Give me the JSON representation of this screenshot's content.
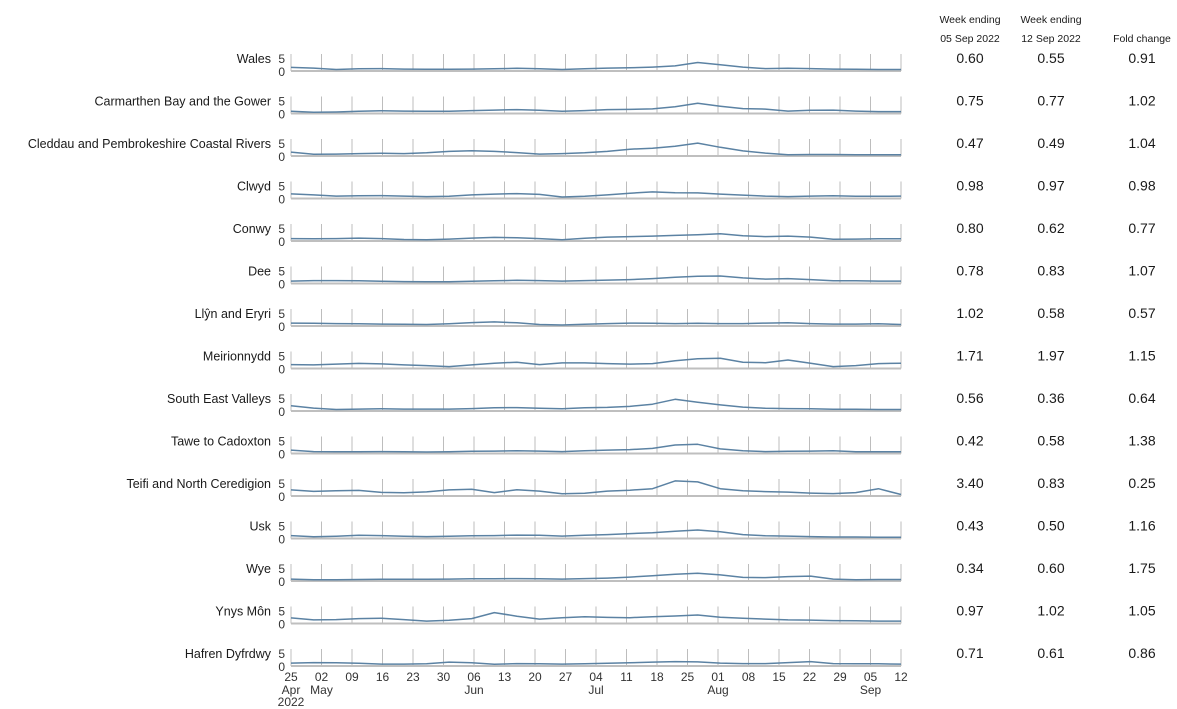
{
  "chart_data": {
    "type": "line",
    "ytick_labels": [
      "5",
      "0"
    ],
    "ylim": [
      0,
      7
    ],
    "x_ticks": [
      {
        "date": "2022-04-25",
        "day": "25",
        "month": "Apr",
        "year": "2022"
      },
      {
        "date": "2022-05-02",
        "day": "02",
        "month": "May",
        "year": ""
      },
      {
        "date": "2022-05-09",
        "day": "09",
        "month": "",
        "year": ""
      },
      {
        "date": "2022-05-16",
        "day": "16",
        "month": "",
        "year": ""
      },
      {
        "date": "2022-05-23",
        "day": "23",
        "month": "",
        "year": ""
      },
      {
        "date": "2022-05-30",
        "day": "30",
        "month": "",
        "year": ""
      },
      {
        "date": "2022-06-06",
        "day": "06",
        "month": "Jun",
        "year": ""
      },
      {
        "date": "2022-06-13",
        "day": "13",
        "month": "",
        "year": ""
      },
      {
        "date": "2022-06-20",
        "day": "20",
        "month": "",
        "year": ""
      },
      {
        "date": "2022-06-27",
        "day": "27",
        "month": "",
        "year": ""
      },
      {
        "date": "2022-07-04",
        "day": "04",
        "month": "Jul",
        "year": ""
      },
      {
        "date": "2022-07-11",
        "day": "11",
        "month": "",
        "year": ""
      },
      {
        "date": "2022-07-18",
        "day": "18",
        "month": "",
        "year": ""
      },
      {
        "date": "2022-07-25",
        "day": "25",
        "month": "",
        "year": ""
      },
      {
        "date": "2022-08-01",
        "day": "01",
        "month": "Aug",
        "year": ""
      },
      {
        "date": "2022-08-08",
        "day": "08",
        "month": "",
        "year": ""
      },
      {
        "date": "2022-08-15",
        "day": "15",
        "month": "",
        "year": ""
      },
      {
        "date": "2022-08-22",
        "day": "22",
        "month": "",
        "year": ""
      },
      {
        "date": "2022-08-29",
        "day": "29",
        "month": "",
        "year": ""
      },
      {
        "date": "2022-09-05",
        "day": "05",
        "month": "Sep",
        "year": ""
      },
      {
        "date": "2022-09-12",
        "day": "12",
        "month": "",
        "year": ""
      }
    ],
    "columns": [
      "Week ending\n05 Sep 2022",
      "Week ending\n12 Sep 2022",
      "Fold change"
    ],
    "series": [
      {
        "name": "Wales",
        "values": [
          1.5,
          1.2,
          0.6,
          0.9,
          1.0,
          0.8,
          0.7,
          0.7,
          0.8,
          0.9,
          1.1,
          0.9,
          0.6,
          0.9,
          1.2,
          1.3,
          1.6,
          2.1,
          3.5,
          2.6,
          1.6,
          1.0,
          1.1,
          1.0,
          0.8,
          0.7,
          0.6,
          0.6
        ],
        "week_05_sep": "0.60",
        "week_12_sep": "0.55",
        "fold_change": "0.91"
      },
      {
        "name": "Carmarthen Bay and the Gower",
        "values": [
          0.9,
          0.5,
          0.6,
          0.9,
          1.1,
          1.0,
          0.9,
          0.9,
          1.2,
          1.4,
          1.6,
          1.3,
          0.9,
          1.2,
          1.6,
          1.7,
          1.9,
          2.8,
          4.2,
          3.0,
          2.0,
          1.8,
          1.0,
          1.3,
          1.4,
          1.0,
          0.8,
          0.8
        ],
        "week_05_sep": "0.75",
        "week_12_sep": "0.77",
        "fold_change": "1.02"
      },
      {
        "name": "Cleddau and Pembrokeshire Coastal Rivers",
        "values": [
          1.6,
          0.7,
          0.8,
          1.0,
          1.1,
          1.0,
          1.3,
          1.9,
          2.2,
          1.9,
          1.4,
          0.8,
          1.0,
          1.3,
          1.9,
          2.8,
          3.2,
          4.0,
          5.3,
          3.6,
          2.1,
          1.2,
          0.5,
          0.6,
          0.6,
          0.5,
          0.5,
          0.5
        ],
        "week_05_sep": "0.47",
        "week_12_sep": "0.49",
        "fold_change": "1.04"
      },
      {
        "name": "Clwyd",
        "values": [
          1.9,
          1.5,
          1.0,
          1.1,
          1.2,
          1.0,
          0.8,
          0.9,
          1.5,
          1.8,
          2.0,
          1.7,
          0.6,
          0.9,
          1.5,
          2.2,
          2.7,
          2.4,
          2.3,
          1.8,
          1.4,
          1.0,
          0.8,
          1.0,
          1.1,
          0.9,
          0.9,
          1.0
        ],
        "week_05_sep": "0.98",
        "week_12_sep": "0.97",
        "fold_change": "0.98"
      },
      {
        "name": "Conwy",
        "values": [
          1.0,
          0.9,
          1.0,
          1.2,
          1.0,
          0.6,
          0.5,
          0.8,
          1.2,
          1.5,
          1.3,
          1.0,
          0.5,
          1.1,
          1.6,
          1.8,
          2.0,
          2.3,
          2.6,
          3.0,
          2.2,
          1.8,
          2.0,
          1.6,
          0.7,
          0.8,
          0.9,
          0.9
        ],
        "week_05_sep": "0.80",
        "week_12_sep": "0.62",
        "fold_change": "0.77"
      },
      {
        "name": "Dee",
        "values": [
          1.0,
          1.2,
          1.2,
          1.1,
          0.9,
          0.8,
          0.7,
          0.7,
          0.9,
          1.1,
          1.3,
          1.2,
          1.0,
          1.2,
          1.4,
          1.6,
          2.0,
          2.6,
          3.0,
          3.1,
          2.3,
          1.8,
          2.0,
          1.6,
          1.1,
          1.1,
          1.0,
          1.0
        ],
        "week_05_sep": "0.78",
        "week_12_sep": "0.83",
        "fold_change": "1.07"
      },
      {
        "name": "Llŷn and Eryri",
        "values": [
          1.2,
          1.1,
          1.0,
          0.9,
          0.8,
          0.7,
          0.6,
          0.9,
          1.4,
          1.7,
          1.3,
          0.6,
          0.4,
          0.7,
          1.0,
          1.2,
          1.1,
          1.0,
          1.1,
          1.0,
          1.0,
          1.2,
          1.3,
          1.0,
          0.8,
          0.8,
          0.9,
          0.6
        ],
        "week_05_sep": "1.02",
        "week_12_sep": "0.58",
        "fold_change": "0.57"
      },
      {
        "name": "Meirionnydd",
        "values": [
          1.6,
          1.5,
          1.8,
          2.1,
          1.9,
          1.5,
          1.2,
          0.8,
          1.5,
          2.2,
          2.6,
          1.6,
          2.3,
          2.3,
          2.0,
          1.8,
          2.0,
          3.2,
          4.0,
          4.2,
          2.6,
          2.4,
          3.5,
          2.2,
          0.8,
          1.2,
          2.0,
          2.2
        ],
        "week_05_sep": "1.71",
        "week_12_sep": "1.97",
        "fold_change": "1.15"
      },
      {
        "name": "South East Valleys",
        "values": [
          2.2,
          1.2,
          0.6,
          0.8,
          0.9,
          0.8,
          0.8,
          0.8,
          1.0,
          1.3,
          1.4,
          1.1,
          0.9,
          1.3,
          1.5,
          1.9,
          2.8,
          4.8,
          3.6,
          2.5,
          1.6,
          1.1,
          1.0,
          0.9,
          0.7,
          0.7,
          0.6,
          0.6
        ],
        "week_05_sep": "0.56",
        "week_12_sep": "0.36",
        "fold_change": "0.64"
      },
      {
        "name": "Tawe to Cadoxton",
        "values": [
          1.4,
          0.8,
          0.7,
          0.7,
          0.8,
          0.7,
          0.6,
          0.7,
          0.9,
          1.0,
          1.1,
          1.0,
          0.8,
          1.1,
          1.4,
          1.6,
          2.1,
          3.5,
          3.8,
          1.9,
          1.1,
          0.8,
          0.9,
          1.0,
          1.1,
          0.7,
          0.7,
          0.7
        ],
        "week_05_sep": "0.42",
        "week_12_sep": "0.58",
        "fold_change": "1.38"
      },
      {
        "name": "Teifi and North Ceredigion",
        "values": [
          2.5,
          1.9,
          2.2,
          2.3,
          1.5,
          1.3,
          1.7,
          2.5,
          2.8,
          1.4,
          2.6,
          2.0,
          0.9,
          1.1,
          2.0,
          2.4,
          3.0,
          6.2,
          5.8,
          3.0,
          2.2,
          1.8,
          1.6,
          1.2,
          1.0,
          1.4,
          3.0,
          0.6
        ],
        "week_05_sep": "3.40",
        "week_12_sep": "0.83",
        "fold_change": "0.25"
      },
      {
        "name": "Usk",
        "values": [
          1.2,
          0.7,
          0.9,
          1.3,
          1.2,
          0.9,
          0.8,
          0.9,
          1.1,
          1.2,
          1.4,
          1.3,
          1.0,
          1.3,
          1.6,
          2.0,
          2.4,
          3.0,
          3.5,
          2.8,
          1.6,
          1.1,
          1.0,
          0.8,
          0.6,
          0.6,
          0.5,
          0.5
        ],
        "week_05_sep": "0.43",
        "week_12_sep": "0.50",
        "fold_change": "1.16"
      },
      {
        "name": "Wye",
        "values": [
          0.8,
          0.5,
          0.5,
          0.6,
          0.7,
          0.7,
          0.7,
          0.8,
          0.9,
          0.9,
          1.0,
          0.9,
          0.8,
          1.0,
          1.2,
          1.6,
          2.2,
          2.8,
          3.2,
          2.5,
          1.5,
          1.4,
          1.8,
          2.0,
          0.8,
          0.5,
          0.6,
          0.6
        ],
        "week_05_sep": "0.34",
        "week_12_sep": "0.60",
        "fold_change": "1.75"
      },
      {
        "name": "Ynys Môn",
        "values": [
          2.3,
          1.5,
          1.6,
          2.0,
          2.2,
          1.6,
          1.0,
          1.3,
          2.0,
          4.5,
          3.0,
          1.8,
          2.4,
          2.8,
          2.5,
          2.4,
          2.8,
          3.1,
          3.5,
          2.6,
          2.2,
          1.8,
          1.5,
          1.4,
          1.2,
          1.1,
          1.0,
          1.0
        ],
        "week_05_sep": "0.97",
        "week_12_sep": "1.02",
        "fold_change": "1.05"
      },
      {
        "name": "Hafren Dyfrdwy",
        "values": [
          1.2,
          1.4,
          1.3,
          1.1,
          0.8,
          0.8,
          0.9,
          1.6,
          1.3,
          0.7,
          1.0,
          0.9,
          0.8,
          0.9,
          1.1,
          1.3,
          1.6,
          1.8,
          1.7,
          1.2,
          1.0,
          1.0,
          1.4,
          1.8,
          1.0,
          0.9,
          0.9,
          0.8
        ],
        "week_05_sep": "0.71",
        "week_12_sep": "0.61",
        "fold_change": "0.86"
      }
    ]
  },
  "colors": {
    "line": "#5b82a3",
    "axis": "#bfbfbf",
    "grid": "#bdbdbd",
    "text": "#1a1a1a"
  }
}
